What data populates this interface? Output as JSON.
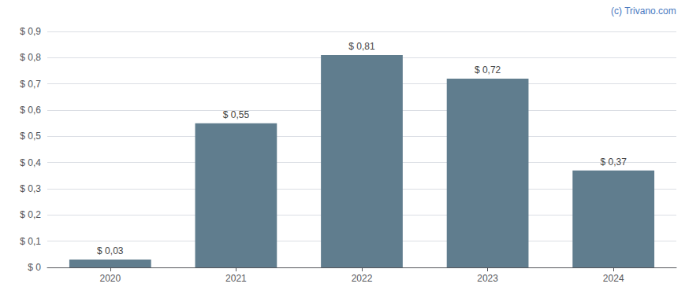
{
  "chart_data": {
    "type": "bar",
    "categories": [
      "2020",
      "2021",
      "2022",
      "2023",
      "2024"
    ],
    "values": [
      0.03,
      0.55,
      0.81,
      0.72,
      0.37
    ],
    "value_labels": [
      "$ 0,03",
      "$ 0,55",
      "$ 0,81",
      "$ 0,72",
      "$ 0,37"
    ],
    "data_labels": true,
    "color": "#607d8e",
    "ylim": [
      0,
      0.9
    ],
    "yticks": [
      {
        "value": 0.0,
        "label": "$ 0"
      },
      {
        "value": 0.1,
        "label": "$ 0,1"
      },
      {
        "value": 0.2,
        "label": "$ 0,2"
      },
      {
        "value": 0.3,
        "label": "$ 0,3"
      },
      {
        "value": 0.4,
        "label": "$ 0,4"
      },
      {
        "value": 0.5,
        "label": "$ 0,5"
      },
      {
        "value": 0.6,
        "label": "$ 0,6"
      },
      {
        "value": 0.7,
        "label": "$ 0,7"
      },
      {
        "value": 0.8,
        "label": "$ 0,8"
      },
      {
        "value": 0.9,
        "label": "$ 0,9"
      }
    ],
    "grid": true,
    "annotations": [
      "(c) Trivano.com"
    ]
  }
}
